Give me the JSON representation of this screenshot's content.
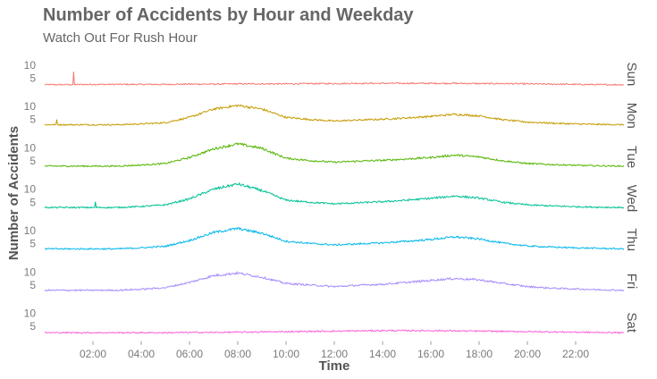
{
  "header": {
    "title": "Number of Accidents by Hour and Weekday",
    "subtitle": "Watch Out For Rush Hour"
  },
  "chart_data": {
    "type": "line",
    "title": "Number of Accidents by Hour and Weekday",
    "subtitle": "Watch Out For Rush Hour",
    "xlabel": "Time",
    "ylabel": "Number of Accidents",
    "x_unit": "hour of day",
    "xlim": [
      0,
      24
    ],
    "ylim": [
      0,
      13
    ],
    "x_ticks": [
      "02:00",
      "04:00",
      "06:00",
      "08:00",
      "10:00",
      "12:00",
      "14:00",
      "16:00",
      "18:00",
      "20:00",
      "22:00"
    ],
    "y_ticks": [
      "5",
      "10"
    ],
    "facets": "rows by weekday",
    "grid": false,
    "legend": "none",
    "x": [
      0,
      1,
      2,
      3,
      4,
      5,
      6,
      7,
      8,
      9,
      10,
      11,
      12,
      13,
      14,
      15,
      16,
      17,
      18,
      19,
      20,
      21,
      22,
      23,
      24
    ],
    "series": [
      {
        "name": "Sun",
        "color": "#F8766D",
        "values": [
          2.5,
          2.5,
          2.6,
          2.6,
          2.6,
          2.6,
          2.7,
          2.7,
          2.8,
          2.8,
          2.8,
          2.9,
          2.9,
          3.0,
          3.0,
          3.0,
          3.0,
          3.0,
          2.9,
          2.9,
          2.8,
          2.7,
          2.6,
          2.5,
          2.5
        ],
        "spikes": [
          {
            "x": 1.2,
            "y": 7.5
          }
        ]
      },
      {
        "name": "Mon",
        "color": "#C49A00",
        "values": [
          3,
          3,
          3,
          3,
          3.3,
          3.8,
          5.8,
          9.0,
          10.4,
          9.0,
          5.8,
          5.0,
          4.4,
          4.8,
          5.1,
          5.6,
          6.2,
          7.0,
          6.4,
          4.9,
          4.0,
          3.6,
          3.3,
          3.1,
          3.0
        ],
        "spikes": [
          {
            "x": 0.5,
            "y": 5.0
          }
        ]
      },
      {
        "name": "Tue",
        "color": "#53B400",
        "values": [
          3,
          3,
          3,
          3,
          3.4,
          4.0,
          6.3,
          9.6,
          11.5,
          9.8,
          6.0,
          5.1,
          4.5,
          4.9,
          5.2,
          5.7,
          6.3,
          7.2,
          6.5,
          5.0,
          4.0,
          3.6,
          3.3,
          3.1,
          3.0
        ],
        "spikes": []
      },
      {
        "name": "Wed",
        "color": "#00C094",
        "values": [
          3,
          3,
          3,
          3,
          3.4,
          4.0,
          6.3,
          10.0,
          12.0,
          9.5,
          5.8,
          5.0,
          4.4,
          4.8,
          5.2,
          5.8,
          6.5,
          7.4,
          6.6,
          5.0,
          4.0,
          3.6,
          3.3,
          3.1,
          3.0
        ],
        "spikes": [
          {
            "x": 2.1,
            "y": 5.2
          }
        ]
      },
      {
        "name": "Thu",
        "color": "#00B6EB",
        "values": [
          3,
          3,
          3,
          3,
          3.4,
          4.0,
          6.2,
          9.3,
          10.8,
          9.0,
          5.9,
          5.1,
          4.5,
          4.9,
          5.3,
          5.9,
          6.6,
          7.6,
          6.8,
          5.2,
          4.1,
          3.7,
          3.4,
          3.2,
          3.0
        ],
        "spikes": []
      },
      {
        "name": "Fri",
        "color": "#A58AFF",
        "values": [
          3,
          3,
          3,
          3,
          3.4,
          4.0,
          6.0,
          8.6,
          9.6,
          8.0,
          5.6,
          5.0,
          4.4,
          4.9,
          5.3,
          6.0,
          6.8,
          7.5,
          7.0,
          5.6,
          4.4,
          3.8,
          3.5,
          3.2,
          3.0
        ],
        "spikes": []
      },
      {
        "name": "Sat",
        "color": "#FB61D7",
        "values": [
          2.6,
          2.6,
          2.6,
          2.6,
          2.6,
          2.6,
          2.7,
          2.7,
          2.8,
          2.9,
          3.0,
          3.1,
          3.2,
          3.3,
          3.4,
          3.4,
          3.4,
          3.3,
          3.2,
          3.1,
          3.0,
          2.9,
          2.8,
          2.7,
          2.6
        ],
        "spikes": []
      }
    ]
  }
}
